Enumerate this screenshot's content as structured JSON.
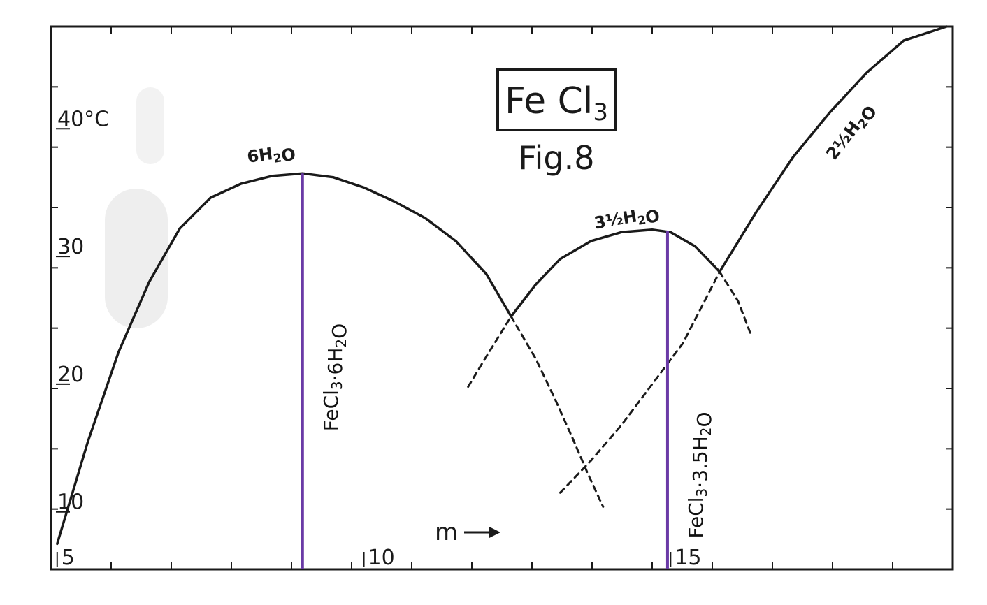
{
  "chart_data": {
    "type": "line",
    "title": "Fe Cl3",
    "subtitle": "Fig.8",
    "xlabel": "m",
    "xlim": [
      4.9,
      19.6
    ],
    "ylim": [
      5.5,
      48
    ],
    "x_ticks": [
      {
        "value": 5,
        "label": "5"
      },
      {
        "value": 10,
        "label": "10"
      },
      {
        "value": 15,
        "label": "15"
      }
    ],
    "y_ticks": [
      {
        "value": 10,
        "label": "10"
      },
      {
        "value": 20,
        "label": "20"
      },
      {
        "value": 30,
        "label": "30"
      },
      {
        "value": 40,
        "label": "40°C"
      }
    ],
    "series": [
      {
        "name": "6H2O",
        "style": "solid",
        "points": [
          [
            5.0,
            7.5
          ],
          [
            5.5,
            15.5
          ],
          [
            6.0,
            22.5
          ],
          [
            6.5,
            28.0
          ],
          [
            7.0,
            32.2
          ],
          [
            7.5,
            34.6
          ],
          [
            8.0,
            35.7
          ],
          [
            8.5,
            36.3
          ],
          [
            9.0,
            36.5
          ],
          [
            9.5,
            36.2
          ],
          [
            10.0,
            35.4
          ],
          [
            10.5,
            34.3
          ],
          [
            11.0,
            33.0
          ],
          [
            11.5,
            31.2
          ],
          [
            12.0,
            28.6
          ],
          [
            12.4,
            25.3
          ]
        ]
      },
      {
        "name": "",
        "style": "dashed",
        "points": [
          [
            12.4,
            25.3
          ],
          [
            12.8,
            22.0
          ],
          [
            13.1,
            19.0
          ],
          [
            13.4,
            15.8
          ],
          [
            13.65,
            13.0
          ],
          [
            13.9,
            10.4
          ]
        ]
      },
      {
        "name": "3½H2O",
        "style": "solid",
        "points": [
          [
            12.4,
            25.3
          ],
          [
            12.8,
            27.8
          ],
          [
            13.2,
            29.8
          ],
          [
            13.7,
            31.2
          ],
          [
            14.2,
            31.9
          ],
          [
            14.7,
            32.1
          ],
          [
            15.0,
            31.9
          ],
          [
            15.4,
            30.8
          ],
          [
            15.8,
            28.8
          ]
        ]
      },
      {
        "name": "",
        "style": "dashed",
        "points": [
          [
            11.7,
            19.8
          ],
          [
            12.0,
            22.2
          ],
          [
            12.4,
            25.3
          ]
        ]
      },
      {
        "name": "",
        "style": "dashed",
        "points": [
          [
            15.8,
            28.8
          ],
          [
            16.1,
            26.5
          ],
          [
            16.3,
            24.0
          ]
        ]
      },
      {
        "name": "2½H2O",
        "style": "solid",
        "points": [
          [
            15.8,
            28.8
          ],
          [
            16.4,
            33.5
          ],
          [
            17.0,
            37.8
          ],
          [
            17.6,
            41.3
          ],
          [
            18.2,
            44.4
          ],
          [
            18.8,
            46.9
          ],
          [
            19.5,
            48.0
          ]
        ]
      },
      {
        "name": "",
        "style": "dashed",
        "points": [
          [
            13.2,
            11.5
          ],
          [
            13.7,
            14.0
          ],
          [
            14.2,
            16.8
          ],
          [
            14.7,
            20.0
          ],
          [
            15.2,
            23.2
          ],
          [
            15.8,
            28.8
          ]
        ]
      }
    ],
    "curve_labels": [
      {
        "text": "6H2O",
        "x": 8.5,
        "y": 37.6,
        "angle": -8
      },
      {
        "text": "3½H2O",
        "x": 14.3,
        "y": 32.6,
        "angle": -10
      },
      {
        "text": "2½H2O",
        "x": 18.0,
        "y": 39.5,
        "angle": -52
      }
    ],
    "annotations": [
      {
        "text": "FeCl3·6H2O",
        "x": 9.0,
        "y_top": 36.5,
        "y_bottom": 5.5,
        "color": "#6a3aa6"
      },
      {
        "text": "FeCl3·3.5H2O",
        "x": 14.95,
        "y_top": 32.0,
        "y_bottom": 5.5,
        "color": "#6a3aa6"
      }
    ],
    "grid": false,
    "legend": "none"
  }
}
